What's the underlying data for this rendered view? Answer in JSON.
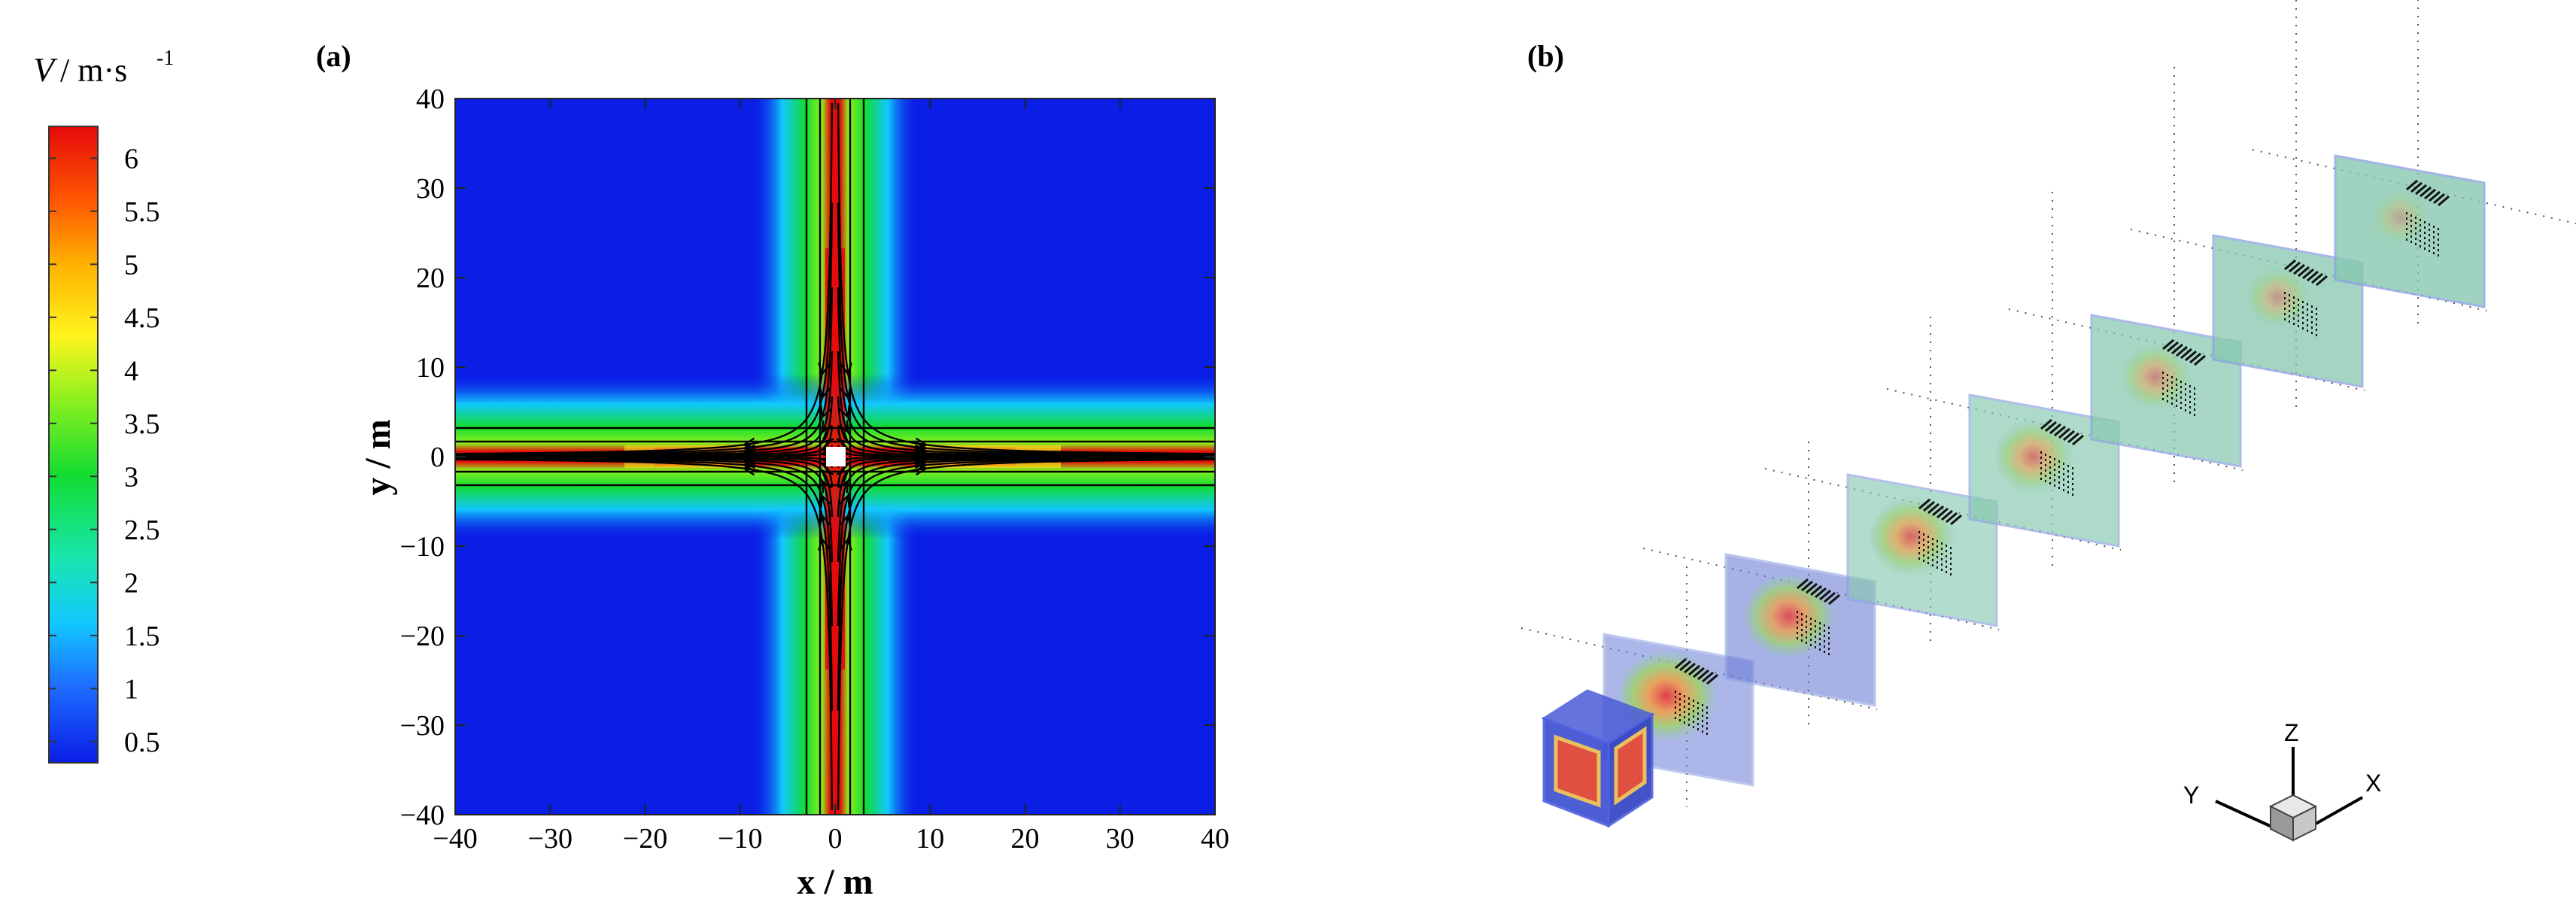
{
  "colorbar": {
    "label_var": "V",
    "label_unit": "/ m·s",
    "label_exp": "-1",
    "ticks": [
      "6",
      "5.5",
      "5",
      "4.5",
      "4",
      "3.5",
      "3",
      "2.5",
      "2",
      "1.5",
      "1",
      "0.5"
    ]
  },
  "panel_a": {
    "label": "(a)",
    "xlabel": "x / m",
    "ylabel": "y / m",
    "x_ticks": [
      "−40",
      "−30",
      "−20",
      "−10",
      "0",
      "10",
      "20",
      "30",
      "40"
    ],
    "y_ticks": [
      "40",
      "30",
      "20",
      "10",
      "0",
      "−10",
      "−20",
      "−30",
      "−40"
    ]
  },
  "panel_b": {
    "label": "(b)",
    "axis_x": "X",
    "axis_y": "Y",
    "axis_z": "Z"
  },
  "chart_data": {
    "type": "heatmap",
    "title": "",
    "xlabel": "x / m",
    "ylabel": "y / m",
    "xlim": [
      -40,
      40
    ],
    "ylim": [
      -40,
      40
    ],
    "colorbar_range": [
      0.3,
      6.3
    ],
    "colorbar_ticks": [
      0.5,
      1,
      1.5,
      2,
      2.5,
      3,
      3.5,
      4,
      4.5,
      5,
      5.5,
      6
    ],
    "colorbar_label": "V / m·s-1",
    "field": "speed highest (≈6) in narrow jets along x=0 and y=0 radiating from a central square source; decays to ≈0.5 away from the axes",
    "streamlines": true,
    "grid": false
  }
}
